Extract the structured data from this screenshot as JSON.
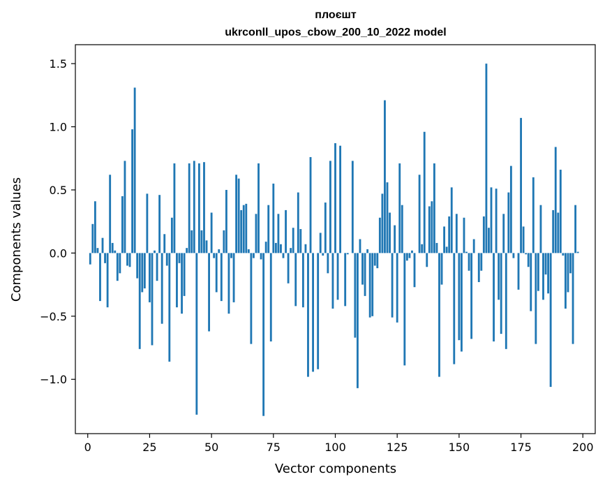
{
  "chart_data": {
    "type": "bar",
    "title": "плоєшт",
    "subtitle": "ukrconll_upos_cbow_200_10_2022 model",
    "xlabel": "Vector components",
    "ylabel": "Components values",
    "xlim": [
      -5,
      205
    ],
    "ylim": [
      -1.43,
      1.65
    ],
    "xticks": [
      0,
      25,
      50,
      75,
      100,
      125,
      150,
      175,
      200
    ],
    "yticks": [
      -1.0,
      -0.5,
      0.0,
      0.5,
      1.0,
      1.5
    ],
    "ytick_labels": [
      "−1.0",
      "−0.5",
      "0.0",
      "0.5",
      "1.0",
      "1.5"
    ],
    "color": "#1f77b4",
    "values": [
      -0.09,
      0.23,
      0.41,
      0.04,
      -0.38,
      0.12,
      -0.08,
      -0.43,
      0.62,
      0.08,
      0.02,
      -0.22,
      -0.16,
      0.45,
      0.73,
      -0.1,
      -0.11,
      0.98,
      1.31,
      -0.2,
      -0.76,
      -0.31,
      -0.28,
      0.47,
      -0.39,
      -0.73,
      0.02,
      -0.22,
      0.46,
      -0.56,
      0.15,
      -0.1,
      -0.86,
      0.28,
      0.71,
      -0.43,
      -0.08,
      -0.48,
      -0.34,
      0.04,
      0.71,
      0.18,
      0.73,
      -1.28,
      0.71,
      0.18,
      0.72,
      0.1,
      -0.62,
      0.32,
      -0.04,
      -0.31,
      0.03,
      -0.38,
      0.18,
      0.5,
      -0.48,
      -0.04,
      -0.39,
      0.62,
      0.59,
      0.34,
      0.38,
      0.39,
      0.03,
      -0.72,
      -0.04,
      0.31,
      0.71,
      -0.05,
      -1.29,
      0.09,
      0.38,
      -0.7,
      0.55,
      0.08,
      0.31,
      0.07,
      -0.04,
      0.34,
      -0.24,
      0.04,
      0.2,
      -0.42,
      0.48,
      0.19,
      -0.43,
      0.07,
      -0.98,
      0.76,
      -0.94,
      0.0,
      -0.92,
      0.16,
      -0.02,
      0.4,
      -0.16,
      0.73,
      -0.44,
      0.87,
      -0.37,
      0.85,
      0.0,
      -0.42,
      -0.01,
      0.0,
      0.73,
      -0.67,
      -1.07,
      0.11,
      -0.25,
      -0.34,
      0.03,
      -0.51,
      -0.5,
      -0.1,
      -0.12,
      0.28,
      0.47,
      1.21,
      0.56,
      0.32,
      -0.51,
      0.22,
      -0.55,
      0.71,
      0.38,
      -0.89,
      -0.06,
      -0.04,
      0.02,
      -0.27,
      0.0,
      0.62,
      0.07,
      0.96,
      -0.11,
      0.37,
      0.41,
      0.71,
      0.08,
      -0.98,
      -0.25,
      0.21,
      0.05,
      0.29,
      0.52,
      -0.88,
      0.31,
      -0.69,
      -0.78,
      0.28,
      0.01,
      -0.14,
      -0.68,
      0.11,
      0.0,
      -0.23,
      -0.14,
      0.29,
      1.5,
      0.2,
      0.52,
      -0.7,
      0.51,
      -0.37,
      -0.64,
      0.31,
      -0.76,
      0.48,
      0.69,
      -0.04,
      0.0,
      -0.29,
      1.07,
      0.21,
      -0.01,
      -0.11,
      -0.46,
      0.6,
      -0.72,
      -0.3,
      0.38,
      -0.37,
      -0.17,
      -0.32,
      -1.06,
      0.34,
      0.84,
      0.32,
      0.66,
      -0.02,
      -0.44,
      -0.31,
      -0.16,
      -0.72,
      0.38,
      0.01
    ]
  }
}
